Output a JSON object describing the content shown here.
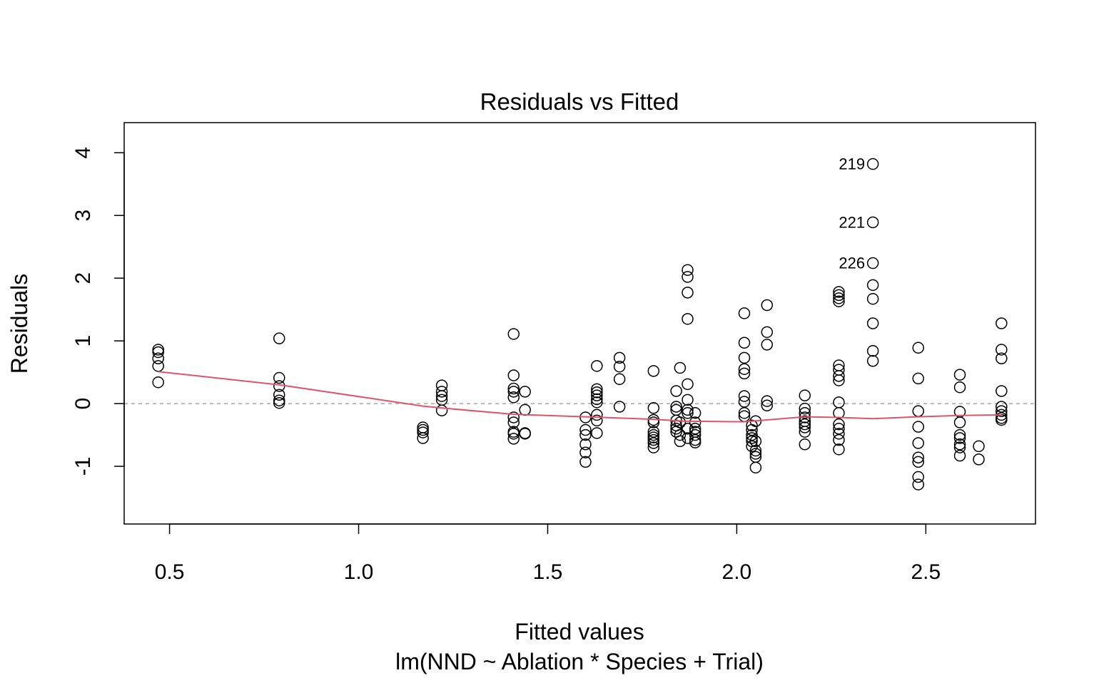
{
  "chart_data": {
    "type": "scatter",
    "title": "Residuals vs Fitted",
    "xlabel": "Fitted values",
    "subtitle": "lm(NND ~ Ablation * Species + Trial)",
    "ylabel": "Residuals",
    "xlim": [
      0.38,
      2.79
    ],
    "ylim": [
      -1.92,
      4.48
    ],
    "x_ticks": [
      0.5,
      1.0,
      1.5,
      2.0,
      2.5
    ],
    "x_tick_labels": [
      "0.5",
      "1.0",
      "1.5",
      "2.0",
      "2.5"
    ],
    "y_ticks": [
      -1,
      0,
      1,
      2,
      3,
      4
    ],
    "y_tick_labels": [
      "-1",
      "0",
      "1",
      "2",
      "3",
      "4"
    ],
    "grid": false,
    "reference_line": {
      "y": 0,
      "color": "#a8a8a8",
      "style": "dashed"
    },
    "colors": {
      "points": "#000000",
      "smooth": "#df536b",
      "frame": "#000000"
    },
    "points": [
      {
        "x": 0.47,
        "y": 0.86
      },
      {
        "x": 0.47,
        "y": 0.82
      },
      {
        "x": 0.47,
        "y": 0.72
      },
      {
        "x": 0.47,
        "y": 0.6
      },
      {
        "x": 0.47,
        "y": 0.34
      },
      {
        "x": 0.79,
        "y": 1.04
      },
      {
        "x": 0.79,
        "y": 0.41
      },
      {
        "x": 0.79,
        "y": 0.28
      },
      {
        "x": 0.79,
        "y": 0.14
      },
      {
        "x": 0.79,
        "y": 0.05
      },
      {
        "x": 0.79,
        "y": 0.01
      },
      {
        "x": 1.17,
        "y": -0.38
      },
      {
        "x": 1.17,
        "y": -0.42
      },
      {
        "x": 1.17,
        "y": -0.46
      },
      {
        "x": 1.17,
        "y": -0.55
      },
      {
        "x": 1.22,
        "y": 0.29
      },
      {
        "x": 1.22,
        "y": 0.19
      },
      {
        "x": 1.22,
        "y": 0.12
      },
      {
        "x": 1.22,
        "y": 0.06
      },
      {
        "x": 1.22,
        "y": -0.11
      },
      {
        "x": 1.41,
        "y": 1.11
      },
      {
        "x": 1.41,
        "y": 0.45
      },
      {
        "x": 1.41,
        "y": 0.24
      },
      {
        "x": 1.41,
        "y": 0.19
      },
      {
        "x": 1.41,
        "y": 0.1
      },
      {
        "x": 1.41,
        "y": -0.22
      },
      {
        "x": 1.41,
        "y": -0.3
      },
      {
        "x": 1.41,
        "y": -0.45
      },
      {
        "x": 1.41,
        "y": -0.48
      },
      {
        "x": 1.41,
        "y": -0.56
      },
      {
        "x": 1.44,
        "y": 0.19
      },
      {
        "x": 1.44,
        "y": -0.1
      },
      {
        "x": 1.44,
        "y": -0.47
      },
      {
        "x": 1.44,
        "y": -0.48
      },
      {
        "x": 1.6,
        "y": -0.22
      },
      {
        "x": 1.6,
        "y": -0.42
      },
      {
        "x": 1.6,
        "y": -0.5
      },
      {
        "x": 1.6,
        "y": -0.65
      },
      {
        "x": 1.6,
        "y": -0.78
      },
      {
        "x": 1.6,
        "y": -0.93
      },
      {
        "x": 1.63,
        "y": 0.6
      },
      {
        "x": 1.63,
        "y": 0.23
      },
      {
        "x": 1.63,
        "y": 0.18
      },
      {
        "x": 1.63,
        "y": 0.13
      },
      {
        "x": 1.63,
        "y": 0.07
      },
      {
        "x": 1.63,
        "y": 0.02
      },
      {
        "x": 1.63,
        "y": -0.18
      },
      {
        "x": 1.63,
        "y": -0.27
      },
      {
        "x": 1.63,
        "y": -0.47
      },
      {
        "x": 1.69,
        "y": 0.73
      },
      {
        "x": 1.69,
        "y": 0.59
      },
      {
        "x": 1.69,
        "y": 0.39
      },
      {
        "x": 1.69,
        "y": -0.05
      },
      {
        "x": 1.78,
        "y": 0.52
      },
      {
        "x": 1.78,
        "y": -0.07
      },
      {
        "x": 1.78,
        "y": -0.26
      },
      {
        "x": 1.78,
        "y": -0.3
      },
      {
        "x": 1.78,
        "y": -0.45
      },
      {
        "x": 1.78,
        "y": -0.5
      },
      {
        "x": 1.78,
        "y": -0.54
      },
      {
        "x": 1.78,
        "y": -0.58
      },
      {
        "x": 1.78,
        "y": -0.63
      },
      {
        "x": 1.78,
        "y": -0.7
      },
      {
        "x": 1.84,
        "y": 0.2
      },
      {
        "x": 1.84,
        "y": -0.05
      },
      {
        "x": 1.84,
        "y": -0.1
      },
      {
        "x": 1.84,
        "y": -0.27
      },
      {
        "x": 1.84,
        "y": -0.35
      },
      {
        "x": 1.84,
        "y": -0.4
      },
      {
        "x": 1.84,
        "y": -0.45
      },
      {
        "x": 1.85,
        "y": 0.57
      },
      {
        "x": 1.85,
        "y": -0.3
      },
      {
        "x": 1.85,
        "y": -0.5
      },
      {
        "x": 1.85,
        "y": -0.6
      },
      {
        "x": 1.87,
        "y": 2.13
      },
      {
        "x": 1.87,
        "y": 2.02
      },
      {
        "x": 1.87,
        "y": 1.77
      },
      {
        "x": 1.87,
        "y": 1.35
      },
      {
        "x": 1.87,
        "y": 0.31
      },
      {
        "x": 1.87,
        "y": 0.06
      },
      {
        "x": 1.87,
        "y": -0.1
      },
      {
        "x": 1.87,
        "y": -0.15
      },
      {
        "x": 1.87,
        "y": -0.4
      },
      {
        "x": 1.87,
        "y": -0.55
      },
      {
        "x": 1.89,
        "y": -0.15
      },
      {
        "x": 1.89,
        "y": -0.3
      },
      {
        "x": 1.89,
        "y": -0.4
      },
      {
        "x": 1.89,
        "y": -0.45
      },
      {
        "x": 1.89,
        "y": -0.5
      },
      {
        "x": 1.89,
        "y": -0.58
      },
      {
        "x": 1.89,
        "y": -0.62
      },
      {
        "x": 2.02,
        "y": 1.44
      },
      {
        "x": 2.02,
        "y": 0.97
      },
      {
        "x": 2.02,
        "y": 0.73
      },
      {
        "x": 2.02,
        "y": 0.55
      },
      {
        "x": 2.02,
        "y": 0.48
      },
      {
        "x": 2.02,
        "y": 0.12
      },
      {
        "x": 2.02,
        "y": 0.03
      },
      {
        "x": 2.02,
        "y": -0.15
      },
      {
        "x": 2.02,
        "y": -0.2
      },
      {
        "x": 2.04,
        "y": -0.35
      },
      {
        "x": 2.04,
        "y": -0.42
      },
      {
        "x": 2.04,
        "y": -0.5
      },
      {
        "x": 2.04,
        "y": -0.55
      },
      {
        "x": 2.04,
        "y": -0.6
      },
      {
        "x": 2.04,
        "y": -0.68
      },
      {
        "x": 2.05,
        "y": -0.28
      },
      {
        "x": 2.05,
        "y": -0.6
      },
      {
        "x": 2.05,
        "y": -0.75
      },
      {
        "x": 2.05,
        "y": -0.8
      },
      {
        "x": 2.05,
        "y": -0.85
      },
      {
        "x": 2.05,
        "y": -1.02
      },
      {
        "x": 2.08,
        "y": 1.57
      },
      {
        "x": 2.08,
        "y": 1.14
      },
      {
        "x": 2.08,
        "y": 0.94
      },
      {
        "x": 2.08,
        "y": 0.04
      },
      {
        "x": 2.08,
        "y": -0.03
      },
      {
        "x": 2.18,
        "y": 0.13
      },
      {
        "x": 2.18,
        "y": -0.08
      },
      {
        "x": 2.18,
        "y": -0.15
      },
      {
        "x": 2.18,
        "y": -0.22
      },
      {
        "x": 2.18,
        "y": -0.28
      },
      {
        "x": 2.18,
        "y": -0.33
      },
      {
        "x": 2.18,
        "y": -0.38
      },
      {
        "x": 2.18,
        "y": -0.45
      },
      {
        "x": 2.18,
        "y": -0.65
      },
      {
        "x": 2.27,
        "y": 1.78
      },
      {
        "x": 2.27,
        "y": 1.73
      },
      {
        "x": 2.27,
        "y": 1.68
      },
      {
        "x": 2.27,
        "y": 1.63
      },
      {
        "x": 2.27,
        "y": 0.61
      },
      {
        "x": 2.27,
        "y": 0.54
      },
      {
        "x": 2.27,
        "y": 0.44
      },
      {
        "x": 2.27,
        "y": 0.37
      },
      {
        "x": 2.27,
        "y": 0.02
      },
      {
        "x": 2.27,
        "y": -0.15
      },
      {
        "x": 2.27,
        "y": -0.33
      },
      {
        "x": 2.27,
        "y": -0.4
      },
      {
        "x": 2.27,
        "y": -0.48
      },
      {
        "x": 2.27,
        "y": -0.58
      },
      {
        "x": 2.27,
        "y": -0.73
      },
      {
        "x": 2.36,
        "y": 3.82,
        "label": "219"
      },
      {
        "x": 2.36,
        "y": 2.89,
        "label": "221"
      },
      {
        "x": 2.36,
        "y": 2.24,
        "label": "226"
      },
      {
        "x": 2.36,
        "y": 1.89
      },
      {
        "x": 2.36,
        "y": 1.67
      },
      {
        "x": 2.36,
        "y": 1.28
      },
      {
        "x": 2.36,
        "y": 0.84
      },
      {
        "x": 2.36,
        "y": 0.68
      },
      {
        "x": 2.48,
        "y": 0.89
      },
      {
        "x": 2.48,
        "y": 0.4
      },
      {
        "x": 2.48,
        "y": -0.12
      },
      {
        "x": 2.48,
        "y": -0.37
      },
      {
        "x": 2.48,
        "y": -0.63
      },
      {
        "x": 2.48,
        "y": -0.86
      },
      {
        "x": 2.48,
        "y": -0.93
      },
      {
        "x": 2.48,
        "y": -1.17
      },
      {
        "x": 2.48,
        "y": -1.29
      },
      {
        "x": 2.59,
        "y": 0.46
      },
      {
        "x": 2.59,
        "y": 0.26
      },
      {
        "x": 2.59,
        "y": -0.13
      },
      {
        "x": 2.59,
        "y": -0.3
      },
      {
        "x": 2.59,
        "y": -0.5
      },
      {
        "x": 2.59,
        "y": -0.55
      },
      {
        "x": 2.59,
        "y": -0.65
      },
      {
        "x": 2.59,
        "y": -0.7
      },
      {
        "x": 2.59,
        "y": -0.83
      },
      {
        "x": 2.64,
        "y": -0.68
      },
      {
        "x": 2.64,
        "y": -0.89
      },
      {
        "x": 2.7,
        "y": 1.28
      },
      {
        "x": 2.7,
        "y": 0.86
      },
      {
        "x": 2.7,
        "y": 0.72
      },
      {
        "x": 2.7,
        "y": 0.2
      },
      {
        "x": 2.7,
        "y": -0.05
      },
      {
        "x": 2.7,
        "y": -0.12
      },
      {
        "x": 2.7,
        "y": -0.18
      },
      {
        "x": 2.7,
        "y": -0.23
      },
      {
        "x": 2.7,
        "y": -0.26
      }
    ],
    "smooth_line": {
      "x": [
        0.47,
        0.79,
        1.17,
        1.22,
        1.41,
        1.6,
        1.78,
        1.86,
        2.02,
        2.08,
        2.18,
        2.27,
        2.36,
        2.48,
        2.59,
        2.7
      ],
      "y": [
        0.51,
        0.3,
        -0.04,
        -0.07,
        -0.17,
        -0.21,
        -0.25,
        -0.28,
        -0.29,
        -0.26,
        -0.21,
        -0.22,
        -0.24,
        -0.21,
        -0.19,
        -0.18
      ]
    }
  }
}
